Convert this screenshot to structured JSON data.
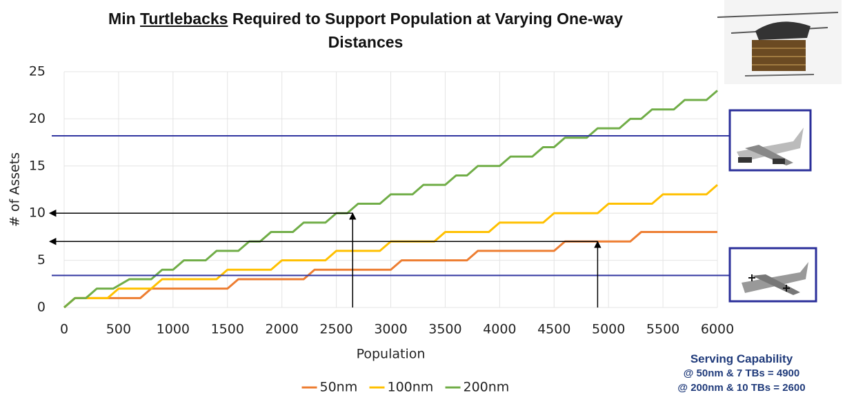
{
  "chart_data": {
    "type": "line",
    "title_parts": [
      "Min",
      "Turtlebacks",
      "Required to Support Population at Varying One-way Distances"
    ],
    "x_label": "Population",
    "y_label": "# of Assets",
    "xlim": [
      0,
      6000
    ],
    "xticks": [
      0,
      500,
      1000,
      1500,
      2000,
      2500,
      3000,
      3500,
      4000,
      4500,
      5000,
      5500,
      6000
    ],
    "ylim": [
      0,
      25
    ],
    "yticks": [
      0,
      5,
      10,
      15,
      20,
      25
    ],
    "grid": true,
    "series": [
      {
        "name": "50nm",
        "color": "#ed7d31",
        "x": [
          0,
          100,
          700,
          800,
          1500,
          1600,
          2200,
          2300,
          3000,
          3100,
          3700,
          3800,
          4500,
          4600,
          5200,
          5300,
          6000
        ],
        "values": [
          0,
          1,
          1,
          2,
          2,
          3,
          3,
          4,
          4,
          5,
          5,
          6,
          6,
          7,
          7,
          8,
          8
        ]
      },
      {
        "name": "100nm",
        "color": "#ffc000",
        "x": [
          0,
          100,
          400,
          500,
          800,
          900,
          1400,
          1500,
          1900,
          2000,
          2400,
          2500,
          2900,
          3000,
          3400,
          3500,
          3900,
          4000,
          4400,
          4500,
          4900,
          5000,
          5400,
          5500,
          5900,
          6000
        ],
        "values": [
          0,
          1,
          1,
          2,
          2,
          3,
          3,
          4,
          4,
          5,
          5,
          6,
          6,
          7,
          7,
          8,
          8,
          9,
          9,
          10,
          10,
          11,
          11,
          12,
          12,
          13
        ]
      },
      {
        "name": "200nm",
        "color": "#70ad47",
        "x": [
          0,
          100,
          200,
          300,
          450,
          600,
          800,
          900,
          1000,
          1100,
          1300,
          1400,
          1600,
          1700,
          1800,
          1900,
          2100,
          2200,
          2400,
          2500,
          2600,
          2700,
          2900,
          3000,
          3200,
          3300,
          3500,
          3600,
          3700,
          3800,
          4000,
          4100,
          4300,
          4400,
          4500,
          4600,
          4800,
          4900,
          5100,
          5200,
          5300,
          5400,
          5600,
          5700,
          5900,
          6000
        ],
        "values": [
          0,
          1,
          1,
          2,
          2,
          3,
          3,
          4,
          4,
          5,
          5,
          6,
          6,
          7,
          7,
          8,
          8,
          9,
          9,
          10,
          10,
          11,
          11,
          12,
          12,
          13,
          13,
          14,
          14,
          15,
          15,
          16,
          16,
          17,
          17,
          18,
          18,
          19,
          19,
          20,
          20,
          21,
          21,
          22,
          22,
          23
        ]
      }
    ],
    "reference_lines": [
      18.2,
      3.4
    ],
    "reference_color": "#3035a0",
    "arrows": [
      {
        "x": 2650,
        "y": 10
      },
      {
        "x": 4900,
        "y": 7
      }
    ],
    "legend": "bottom",
    "capability": {
      "title": "Serving Capability",
      "lines": [
        "@ 50nm & 7 TBs = 4900",
        "@ 200nm & 10 TBs = 2600"
      ]
    }
  }
}
